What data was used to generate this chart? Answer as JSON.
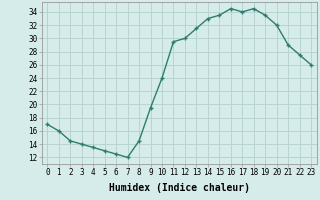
{
  "x": [
    0,
    1,
    2,
    3,
    4,
    5,
    6,
    7,
    8,
    9,
    10,
    11,
    12,
    13,
    14,
    15,
    16,
    17,
    18,
    19,
    20,
    21,
    22,
    23
  ],
  "y": [
    17,
    16,
    14.5,
    14,
    13.5,
    13,
    12.5,
    12,
    14.5,
    19.5,
    24,
    29.5,
    30,
    31.5,
    33,
    33.5,
    34.5,
    34,
    34.5,
    33.5,
    32,
    29,
    27.5,
    26
  ],
  "line_color": "#2e7d6e",
  "marker": "+",
  "marker_size": 3.5,
  "marker_color": "#2e7d6e",
  "bg_color": "#d5ecea",
  "grid_color": "#b8d4d0",
  "xlabel": "Humidex (Indice chaleur)",
  "xlabel_fontsize": 7,
  "ylabel_ticks": [
    12,
    14,
    16,
    18,
    20,
    22,
    24,
    26,
    28,
    30,
    32,
    34
  ],
  "ylim": [
    11.0,
    35.5
  ],
  "xlim": [
    -0.5,
    23.5
  ],
  "xtick_labels": [
    "0",
    "1",
    "2",
    "3",
    "4",
    "5",
    "6",
    "7",
    "8",
    "9",
    "10",
    "11",
    "12",
    "13",
    "14",
    "15",
    "16",
    "17",
    "18",
    "19",
    "20",
    "21",
    "22",
    "23"
  ],
  "tick_fontsize": 5.5,
  "line_width": 1.0
}
